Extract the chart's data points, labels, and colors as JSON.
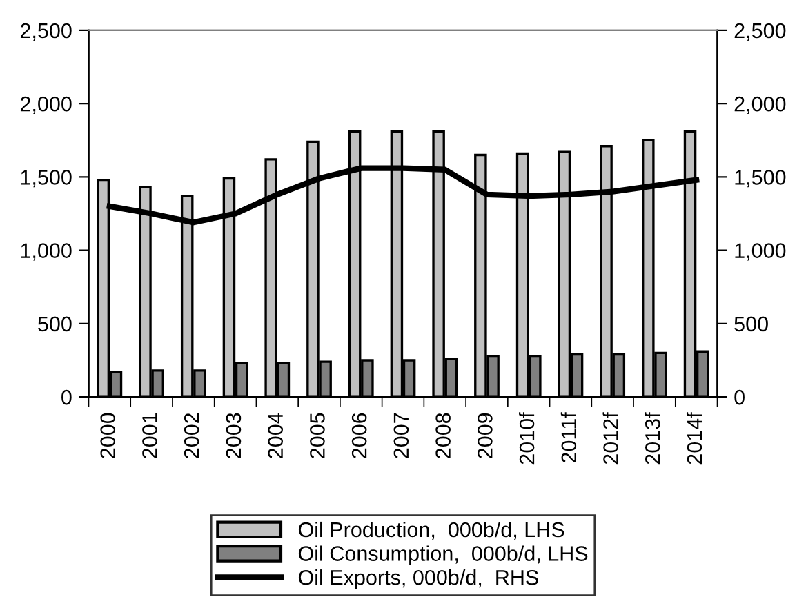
{
  "chart_data": {
    "type": "bar",
    "categories": [
      "2000",
      "2001",
      "2002",
      "2003",
      "2004",
      "2005",
      "2006",
      "2007",
      "2008",
      "2009",
      "2010f",
      "2011f",
      "2012f",
      "2013f",
      "2014f"
    ],
    "series": [
      {
        "name": "Oil Production,  000b/d, LHS",
        "color": "#c0c0c0",
        "values": [
          1480,
          1430,
          1370,
          1490,
          1620,
          1740,
          1810,
          1810,
          1810,
          1650,
          1660,
          1670,
          1710,
          1750,
          1810
        ]
      },
      {
        "name": "Oil Consumption,  000b/d, LHS",
        "color": "#808080",
        "values": [
          170,
          180,
          180,
          230,
          230,
          240,
          250,
          250,
          260,
          280,
          280,
          290,
          290,
          300,
          310
        ]
      },
      {
        "name": "Oil Exports, 000b/d,  RHS",
        "type": "line",
        "axis": "y2",
        "color": "#000000",
        "values": [
          1300,
          1250,
          1190,
          1250,
          1380,
          1490,
          1560,
          1560,
          1550,
          1380,
          1370,
          1380,
          1400,
          1440,
          1480
        ]
      }
    ],
    "ylim": [
      0,
      2500
    ],
    "yticks": [
      {
        "value": 0,
        "label": "0"
      },
      {
        "value": 500,
        "label": "500"
      },
      {
        "value": 1000,
        "label": "1,000"
      },
      {
        "value": 1500,
        "label": "1,500"
      },
      {
        "value": 2000,
        "label": "2,000"
      },
      {
        "value": 2500,
        "label": "2,500"
      }
    ],
    "y2lim": [
      0,
      2500
    ],
    "y2ticks": [
      {
        "value": 0,
        "label": "0"
      },
      {
        "value": 500,
        "label": "500"
      },
      {
        "value": 1000,
        "label": "1,000"
      },
      {
        "value": 1500,
        "label": "1,500"
      },
      {
        "value": 2000,
        "label": "2,000"
      },
      {
        "value": 2500,
        "label": "2,500"
      }
    ],
    "legend": "bottom",
    "grid": false
  }
}
